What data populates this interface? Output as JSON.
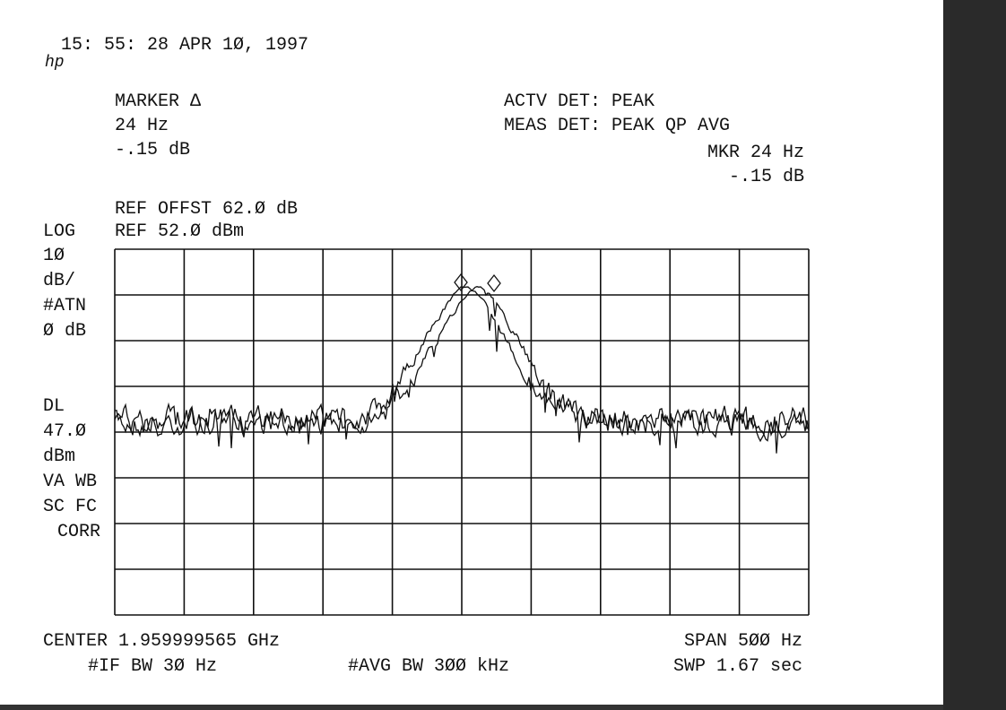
{
  "header": {
    "logo": "hp",
    "timestamp": "15: 55: 28 APR 1Ø, 1997"
  },
  "marker": {
    "title": "MARKER Δ",
    "frequency": "24 Hz",
    "level": "-.15 dB"
  },
  "detector": {
    "active": "ACTV DET: PEAK",
    "measure": "MEAS DET: PEAK QP AVG",
    "marker_frequency": "MKR 24 Hz",
    "marker_level": "-.15 dB"
  },
  "reference": {
    "offset": "REF OFFST 62.Ø dB",
    "level": "REF 52.Ø dBm"
  },
  "side_labels": [
    "LOG",
    "1Ø",
    "dB/",
    "#ATN",
    "Ø dB",
    "DL",
    "47.Ø",
    "dBm",
    "VA WB",
    "SC FC",
    "CORR"
  ],
  "footer": {
    "center": "CENTER 1.959999565 GHz",
    "span": "SPAN 5ØØ Hz",
    "if_bw": "#IF BW 3Ø Hz",
    "avg_bw": "#AVG BW 3ØØ kHz",
    "sweep": "SWP 1.67  sec"
  }
}
